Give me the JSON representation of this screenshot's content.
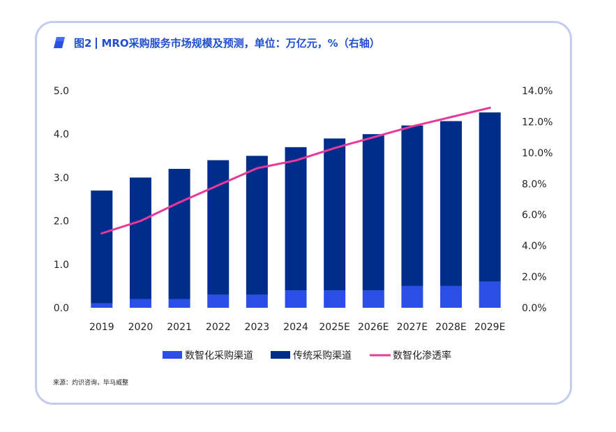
{
  "title": {
    "figure_label": "图2",
    "text": "MRO采购服务市场规模及预测，单位：万亿元，%（右轴）"
  },
  "source": "来源：灼识咨询，毕马威整",
  "colors": {
    "digital": "#2b4ee6",
    "traditional": "#002d8c",
    "rate": "#e8399a",
    "border": "#c3cbef",
    "title": "#1f4fcf"
  },
  "chart_data": {
    "type": "bar",
    "stacked": true,
    "title": "MRO采购服务市场规模及预测，单位：万亿元，%（右轴）",
    "categories": [
      "2019",
      "2020",
      "2021",
      "2022",
      "2023",
      "2024",
      "2025E",
      "2026E",
      "2027E",
      "2028E",
      "2029E"
    ],
    "series": [
      {
        "name": "数智化采购渠道",
        "type": "bar",
        "axis": "left",
        "values": [
          0.1,
          0.2,
          0.2,
          0.3,
          0.3,
          0.4,
          0.4,
          0.4,
          0.5,
          0.5,
          0.6
        ]
      },
      {
        "name": "传统采购渠道",
        "type": "bar",
        "axis": "left",
        "values": [
          2.6,
          2.8,
          3.0,
          3.1,
          3.2,
          3.3,
          3.5,
          3.6,
          3.7,
          3.8,
          3.9
        ]
      },
      {
        "name": "数智化渗透率",
        "type": "line",
        "axis": "right",
        "values": [
          4.8,
          5.6,
          6.8,
          7.9,
          9.0,
          9.5,
          10.3,
          11.0,
          11.7,
          12.3,
          12.9
        ]
      }
    ],
    "y_left": {
      "min": 0,
      "max": 5,
      "ticks": [
        "0.0",
        "1.0",
        "2.0",
        "3.0",
        "4.0",
        "5.0"
      ]
    },
    "y_right": {
      "min": 0,
      "max": 14,
      "ticks": [
        "0.0%",
        "2.0%",
        "4.0%",
        "6.0%",
        "8.0%",
        "10.0%",
        "12.0%",
        "14.0%"
      ]
    },
    "grid": false,
    "legend_position": "bottom-center"
  }
}
